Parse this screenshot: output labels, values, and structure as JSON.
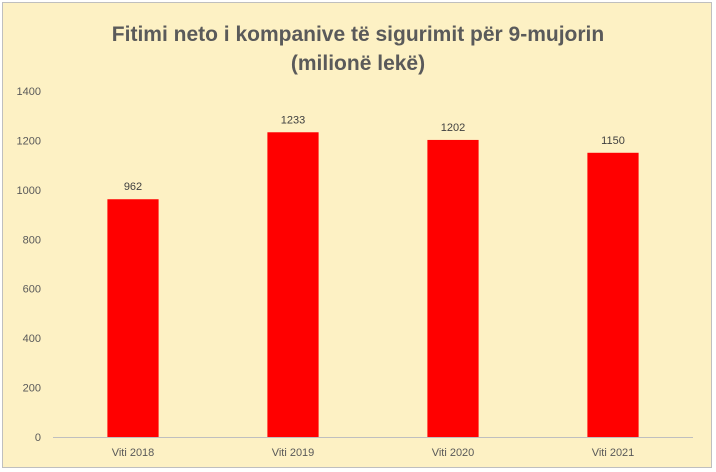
{
  "chart_data": {
    "type": "bar",
    "title": [
      "Fitimi neto i kompanive të sigurimit për 9-mujorin",
      "(milionë lekë)"
    ],
    "categories": [
      "Viti 2018",
      "Viti 2019",
      "Viti 2020",
      "Viti 2021"
    ],
    "values": [
      962,
      1233,
      1202,
      1150
    ],
    "data_labels": [
      "962",
      "1233",
      "1202",
      "1150"
    ],
    "yticks": [
      "0",
      "200",
      "400",
      "600",
      "800",
      "1000",
      "1200",
      "1400"
    ],
    "ylim": [
      0,
      1400
    ],
    "grid": false,
    "legend": "none",
    "xlabel": "",
    "ylabel": "",
    "colors": {
      "bar": "#ff0000",
      "background": "#fdf1c4",
      "axis": "#bfbfbf"
    }
  }
}
